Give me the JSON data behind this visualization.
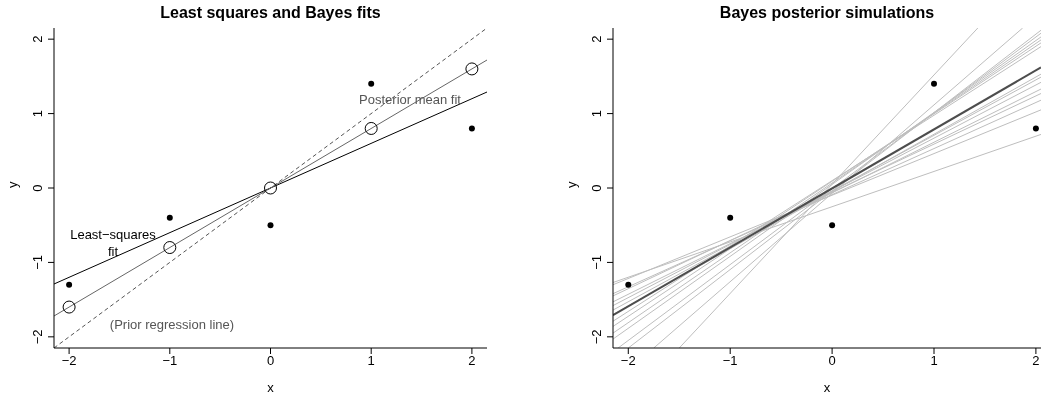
{
  "chart_data": [
    {
      "type": "scatter",
      "title": "Least squares and Bayes fits",
      "xlabel": "x",
      "ylabel": "y",
      "xlim": [
        -2.15,
        2.15
      ],
      "ylim": [
        -2.15,
        2.15
      ],
      "xticks": [
        -2,
        -1,
        0,
        1,
        2
      ],
      "yticks": [
        -2,
        -1,
        0,
        1,
        2
      ],
      "series": [
        {
          "type": "line",
          "color": "#555555",
          "line_style": "dashed",
          "x": [
            -2.15,
            2.15
          ],
          "values": [
            -2.15,
            2.15
          ]
        },
        {
          "type": "line",
          "color": "#000000",
          "x": [
            -2.15,
            2.15
          ],
          "values": [
            -1.29,
            1.29
          ]
        },
        {
          "type": "line",
          "color": "#666666",
          "x": [
            -2.15,
            2.15
          ],
          "values": [
            -1.72,
            1.72
          ]
        },
        {
          "type": "scatter",
          "color": "#000000",
          "marker": "circle",
          "x": [
            -2,
            -1,
            0,
            1,
            2
          ],
          "values": [
            -1.6,
            -0.8,
            0,
            0.8,
            1.6
          ]
        },
        {
          "color": "#000000",
          "x": [
            -2,
            -1,
            0,
            1,
            2
          ],
          "values": [
            -1.3,
            -0.4,
            -0.5,
            1.4,
            0.8
          ]
        }
      ],
      "annotations": [
        "Least−squares\nfit",
        "Posterior mean fit",
        "(Prior regression line)"
      ]
    },
    {
      "type": "line",
      "title": "Bayes posterior simulations",
      "xlabel": "x",
      "ylabel": "y",
      "xlim": [
        -2.15,
        2.05
      ],
      "ylim": [
        -2.15,
        2.15
      ],
      "xticks": [
        -2,
        -1,
        0,
        1,
        2
      ],
      "yticks": [
        -2,
        -1,
        0,
        1,
        2
      ],
      "series": [
        {
          "color": "#bebebe",
          "x": [
            -2.15,
            2.05
          ],
          "values": [
            -1.27,
            0.72
          ]
        },
        {
          "color": "#bebebe",
          "x": [
            -2.15,
            2.05
          ],
          "values": [
            -1.3,
            1.05
          ]
        },
        {
          "color": "#bebebe",
          "x": [
            -2.15,
            2.05
          ],
          "values": [
            -1.42,
            1.18
          ]
        },
        {
          "color": "#bebebe",
          "x": [
            -2.15,
            2.05
          ],
          "values": [
            -1.45,
            1.27
          ]
        },
        {
          "color": "#bebebe",
          "x": [
            -2.15,
            2.05
          ],
          "values": [
            -1.53,
            1.33
          ]
        },
        {
          "color": "#bebebe",
          "x": [
            -2.15,
            2.05
          ],
          "values": [
            -1.58,
            1.42
          ]
        },
        {
          "color": "#bebebe",
          "x": [
            -2.15,
            2.05
          ],
          "values": [
            -1.64,
            1.49
          ]
        },
        {
          "color": "#bebebe",
          "x": [
            -2.15,
            2.05
          ],
          "values": [
            -1.7,
            1.53
          ]
        },
        {
          "color": "#bebebe",
          "x": [
            -2.15,
            2.05
          ],
          "values": [
            -1.79,
            1.9
          ]
        },
        {
          "color": "#bebebe",
          "x": [
            -2.15,
            2.05
          ],
          "values": [
            -1.86,
            1.95
          ]
        },
        {
          "color": "#bebebe",
          "x": [
            -2.15,
            2.05
          ],
          "values": [
            -1.95,
            1.99
          ]
        },
        {
          "color": "#bebebe",
          "x": [
            -2.15,
            2.05
          ],
          "values": [
            -2.03,
            2.03
          ]
        },
        {
          "color": "#bebebe",
          "x": [
            -2.1,
            2.05
          ],
          "values": [
            -2.15,
            2.08
          ]
        },
        {
          "color": "#bebebe",
          "x": [
            -2.0,
            2.05
          ],
          "values": [
            -2.15,
            2.12
          ]
        },
        {
          "color": "#bebebe",
          "x": [
            -1.75,
            1.87
          ],
          "values": [
            -2.15,
            2.15
          ]
        },
        {
          "color": "#bebebe",
          "x": [
            -1.5,
            1.43
          ],
          "values": [
            -2.15,
            2.15
          ]
        },
        {
          "color": "#4d4d4d",
          "x": [
            -2.15,
            2.05
          ],
          "values": [
            -1.71,
            1.62
          ]
        },
        {
          "type": "scatter",
          "color": "#000000",
          "x": [
            -2,
            -1,
            0,
            1,
            2
          ],
          "values": [
            -1.3,
            -0.4,
            -0.5,
            1.4,
            0.8
          ]
        }
      ]
    }
  ]
}
